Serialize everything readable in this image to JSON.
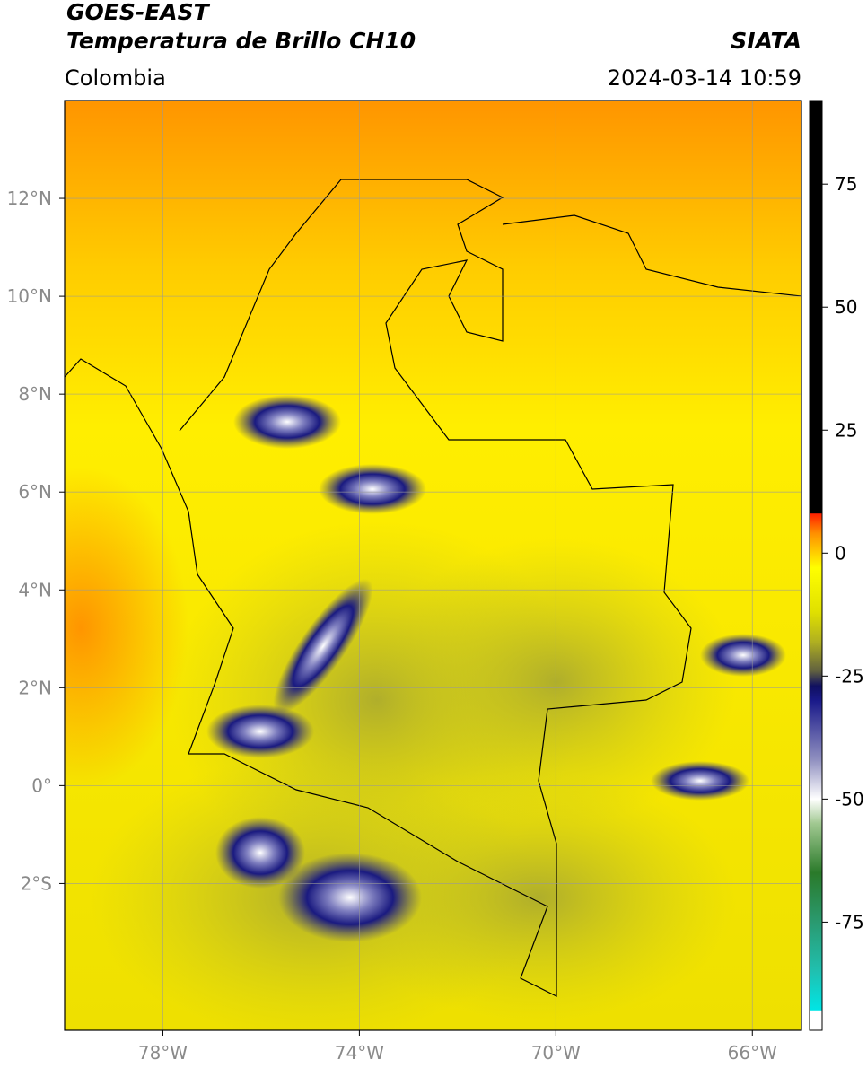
{
  "header": {
    "title": "GOES-EAST",
    "subtitle": "Temperatura de Brillo CH10",
    "source": "SIATA",
    "region": "Colombia",
    "datetime": "2024-03-14 10:59"
  },
  "map": {
    "xlim": [
      -80,
      -65
    ],
    "ylim": [
      -5,
      14
    ],
    "xticks": [
      {
        "value": -78,
        "label": "78°W"
      },
      {
        "value": -74,
        "label": "74°W"
      },
      {
        "value": -70,
        "label": "70°W"
      },
      {
        "value": -66,
        "label": "66°W"
      }
    ],
    "yticks": [
      {
        "value": 12,
        "label": "12°N"
      },
      {
        "value": 10,
        "label": "10°N"
      },
      {
        "value": 8,
        "label": "8°N"
      },
      {
        "value": 6,
        "label": "6°N"
      },
      {
        "value": 4,
        "label": "4°N"
      },
      {
        "value": 2,
        "label": "2°N"
      },
      {
        "value": 0,
        "label": "0°"
      },
      {
        "value": -2,
        "label": "2°S"
      }
    ],
    "grid": true
  },
  "colorbar": {
    "lim": [
      -97,
      92
    ],
    "ticks": [
      75,
      50,
      25,
      0,
      -25,
      -50,
      -75
    ],
    "colormap": [
      {
        "value": -97,
        "color": "#ffffff"
      },
      {
        "value": -93,
        "color": "#ffffff"
      },
      {
        "value": -92.9,
        "color": "#00e5e5"
      },
      {
        "value": -85,
        "color": "#20c0b0"
      },
      {
        "value": -75,
        "color": "#2a9a70"
      },
      {
        "value": -65,
        "color": "#2a7a2a"
      },
      {
        "value": -55,
        "color": "#a0c890"
      },
      {
        "value": -50,
        "color": "#ffffff"
      },
      {
        "value": -42,
        "color": "#9090c0"
      },
      {
        "value": -30,
        "color": "#1a1a8a"
      },
      {
        "value": -27,
        "color": "#101060"
      },
      {
        "value": -24,
        "color": "#606040"
      },
      {
        "value": -18,
        "color": "#b0b020"
      },
      {
        "value": -12,
        "color": "#e0e000"
      },
      {
        "value": -3,
        "color": "#ffff00"
      },
      {
        "value": 4,
        "color": "#ff9000"
      },
      {
        "value": 8,
        "color": "#ff2000"
      },
      {
        "value": 8.1,
        "color": "#000000"
      },
      {
        "value": 92,
        "color": "#000000"
      }
    ]
  }
}
